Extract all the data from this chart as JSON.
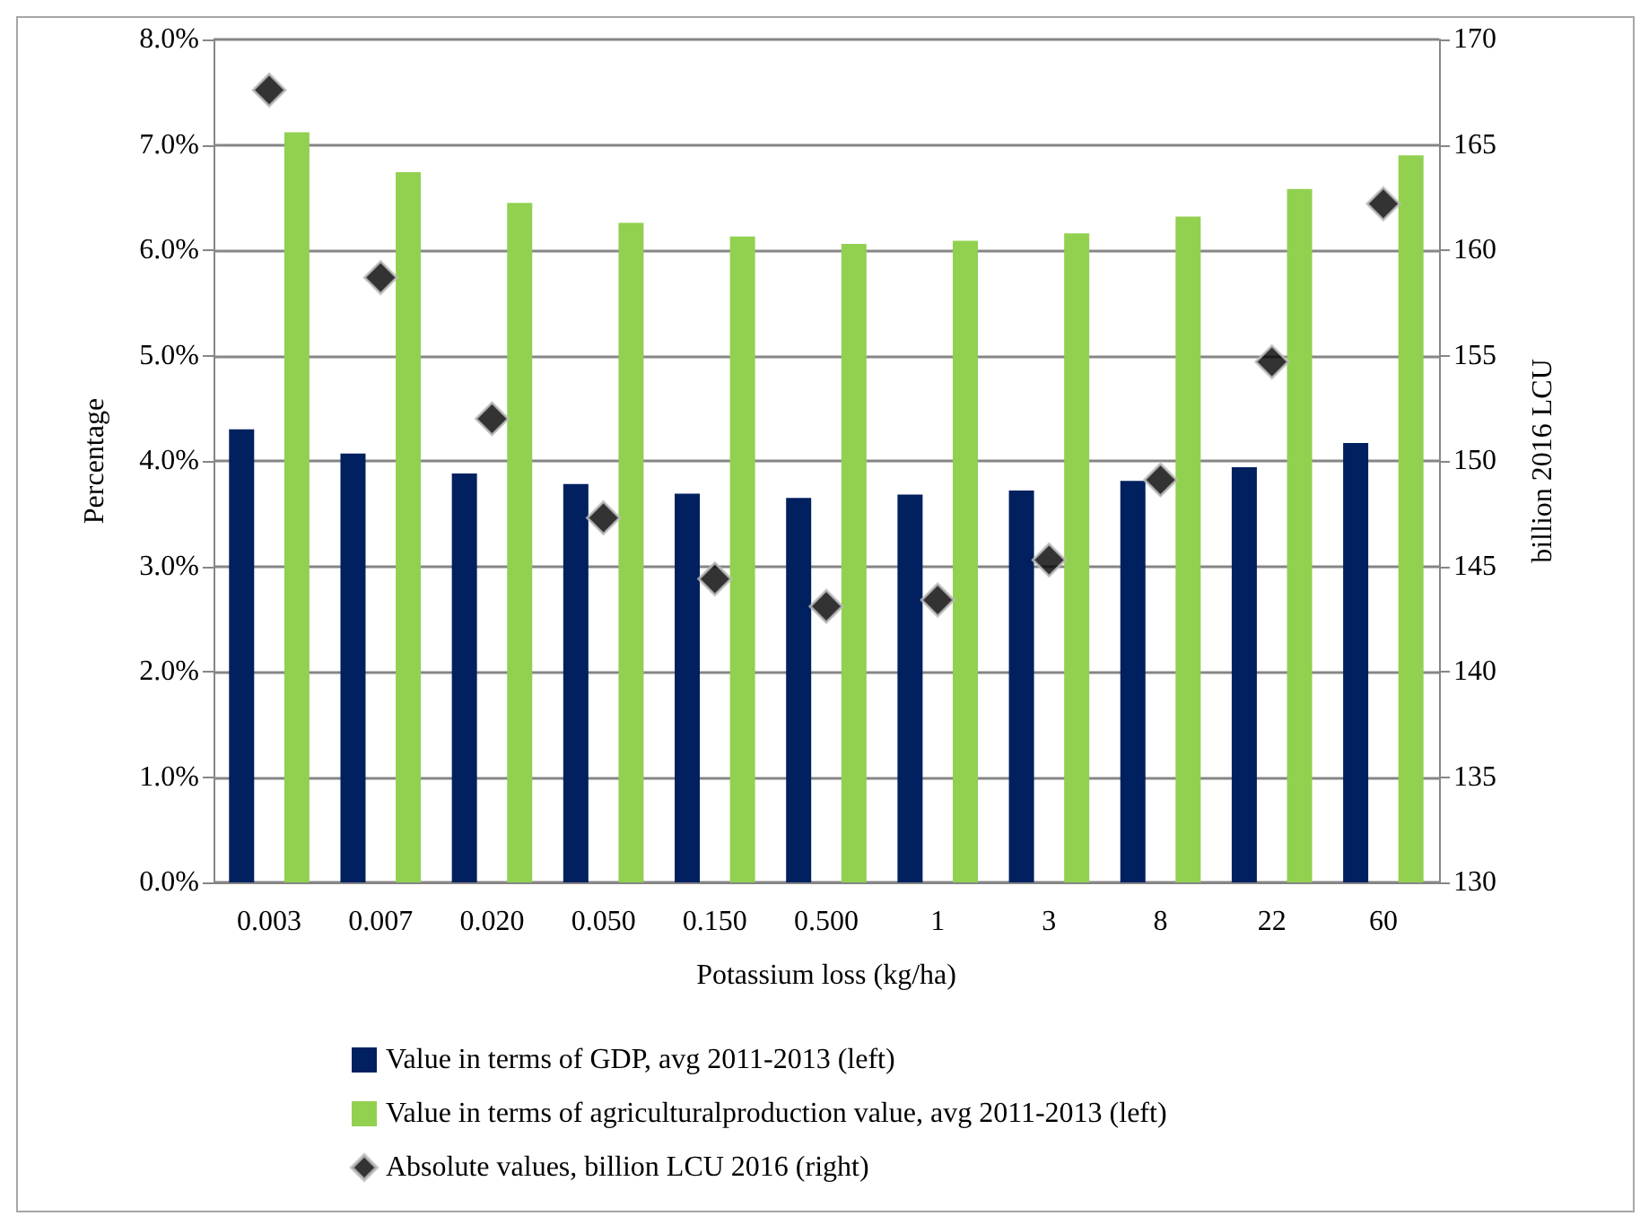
{
  "chart_data": {
    "type": "bar",
    "xlabel": "Potassium loss (kg/ha)",
    "ylabel": "Percentage",
    "y2label": "billion 2016 LCU",
    "categories": [
      "0.003",
      "0.007",
      "0.020",
      "0.050",
      "0.150",
      "0.500",
      "1",
      "3",
      "8",
      "22",
      "60"
    ],
    "series": [
      {
        "name": "Value in terms of GDP, avg 2011-2013 (left)",
        "color": "#002060",
        "values": [
          4.3,
          4.07,
          3.88,
          3.78,
          3.69,
          3.65,
          3.68,
          3.72,
          3.81,
          3.94,
          4.17
        ]
      },
      {
        "name": "Value in terms of agriculturalproduction value, avg 2011-2013 (left)",
        "color": "#92d050",
        "values": [
          7.12,
          6.74,
          6.45,
          6.26,
          6.13,
          6.06,
          6.09,
          6.16,
          6.32,
          6.58,
          6.9
        ]
      },
      {
        "name": "Absolute values, billion LCU 2016 (right)",
        "type": "scatter",
        "axis": "y2",
        "marker": "diamond",
        "color": "#000000",
        "values": [
          167.6,
          158.7,
          152.0,
          147.3,
          144.4,
          143.1,
          143.4,
          145.3,
          149.1,
          154.7,
          162.2
        ]
      }
    ],
    "ylim": [
      0,
      8
    ],
    "yticks": [
      {
        "value": 0,
        "label": "0.0%"
      },
      {
        "value": 1,
        "label": "1.0%"
      },
      {
        "value": 2,
        "label": "2.0%"
      },
      {
        "value": 3,
        "label": "3.0%"
      },
      {
        "value": 4,
        "label": "4.0%"
      },
      {
        "value": 5,
        "label": "5.0%"
      },
      {
        "value": 6,
        "label": "6.0%"
      },
      {
        "value": 7,
        "label": "7.0%"
      },
      {
        "value": 8,
        "label": "8.0%"
      }
    ],
    "y2lim": [
      130,
      170
    ],
    "y2ticks": [
      130,
      135,
      140,
      145,
      150,
      155,
      160,
      165,
      170
    ],
    "grid": "y",
    "legend": "bottom"
  }
}
